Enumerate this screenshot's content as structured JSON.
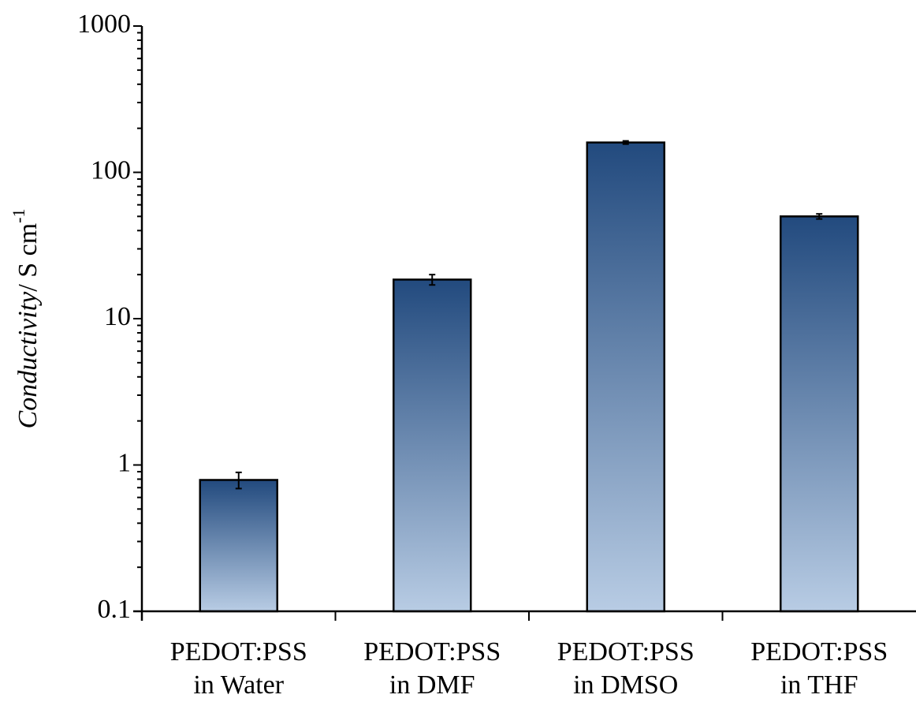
{
  "chart_data": {
    "type": "bar",
    "ylabel": [
      "Conductivity",
      "/ S cm",
      "-1"
    ],
    "categories": [
      [
        "PEDOT:PSS",
        "in Water"
      ],
      [
        "PEDOT:PSS",
        "in DMF"
      ],
      [
        "PEDOT:PSS",
        "in DMSO"
      ],
      [
        "PEDOT:PSS",
        "in THF"
      ]
    ],
    "values": [
      0.79,
      18.5,
      160,
      50
    ],
    "errors": [
      0.1,
      1.5,
      4,
      2
    ],
    "color_top": "#224a7e",
    "color_bottom": "#b8cce4",
    "log_y": true,
    "ylim": [
      0.1,
      1000
    ],
    "yticks": [
      0.1,
      1,
      10,
      100,
      1000
    ]
  }
}
